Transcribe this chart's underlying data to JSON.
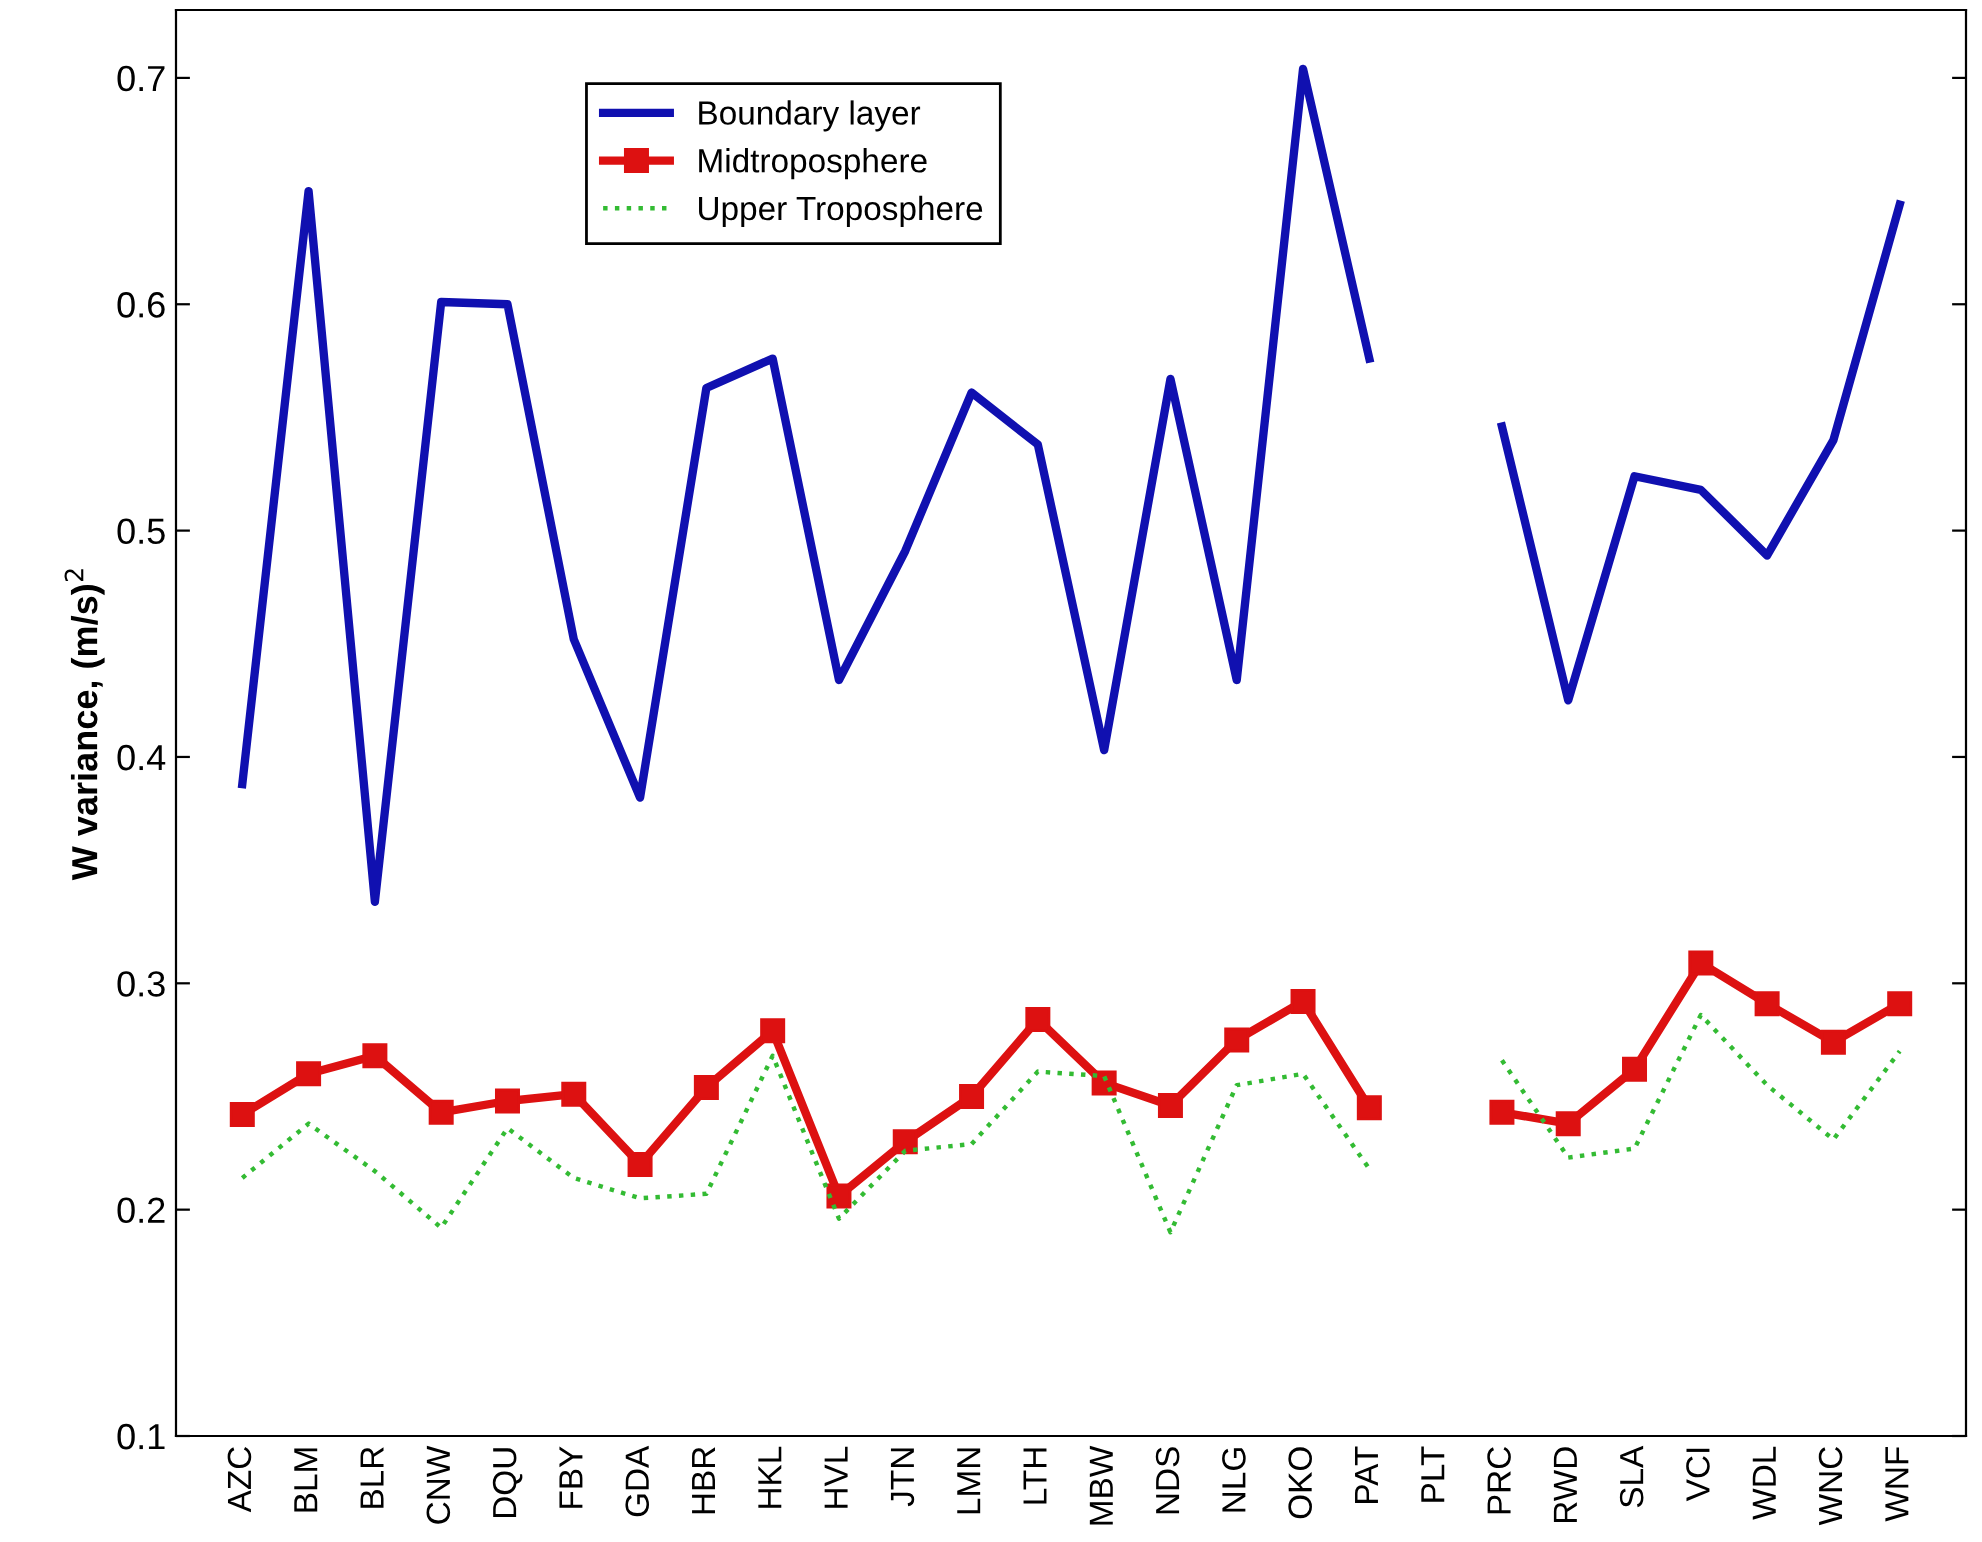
{
  "chart_data": {
    "type": "line",
    "ylabel": "W variance, (m/s)$^{2}$",
    "categories": [
      "AZC",
      "BLM",
      "BLR",
      "CNW",
      "DQU",
      "FBY",
      "GDA",
      "HBR",
      "HKL",
      "HVL",
      "JTN",
      "LMN",
      "LTH",
      "MBW",
      "NDS",
      "NLG",
      "OKO",
      "PAT",
      "PLT",
      "PRC",
      "RWD",
      "SLA",
      "VCI",
      "WDL",
      "WNC",
      "WNF"
    ],
    "series": [
      {
        "name": "Boundary layer",
        "color": "#1010b0",
        "marker": "none",
        "line_style": "solid",
        "values": [
          0.388,
          0.65,
          0.336,
          0.601,
          0.6,
          0.452,
          0.382,
          0.563,
          0.576,
          0.434,
          0.491,
          0.561,
          0.538,
          0.403,
          0.567,
          0.434,
          0.704,
          0.576,
          null,
          0.546,
          0.425,
          0.524,
          0.518,
          0.489,
          0.54,
          0.644
        ]
      },
      {
        "name": "Midtroposphere",
        "color": "#dd1111",
        "marker": "square",
        "line_style": "solid",
        "values": [
          0.242,
          0.26,
          0.268,
          0.243,
          0.248,
          0.251,
          0.22,
          0.254,
          0.279,
          0.206,
          0.23,
          0.25,
          0.284,
          0.256,
          0.246,
          0.275,
          0.292,
          0.245,
          null,
          0.243,
          0.238,
          0.262,
          0.309,
          0.291,
          0.274,
          0.291
        ]
      },
      {
        "name": "Upper Troposphere",
        "color": "#33bb33",
        "marker": "none",
        "line_style": "dotted",
        "values": [
          0.214,
          0.238,
          0.217,
          0.192,
          0.236,
          0.214,
          0.205,
          0.207,
          0.268,
          0.196,
          0.226,
          0.229,
          0.261,
          0.259,
          0.19,
          0.255,
          0.26,
          0.218,
          null,
          0.266,
          0.223,
          0.227,
          0.286,
          0.255,
          0.231,
          0.27
        ]
      }
    ],
    "ylim": [
      0.1,
      0.73
    ],
    "yticks": [
      0.1,
      0.2,
      0.3,
      0.4,
      0.5,
      0.6,
      0.7
    ],
    "grid": false,
    "legend": "top left"
  }
}
